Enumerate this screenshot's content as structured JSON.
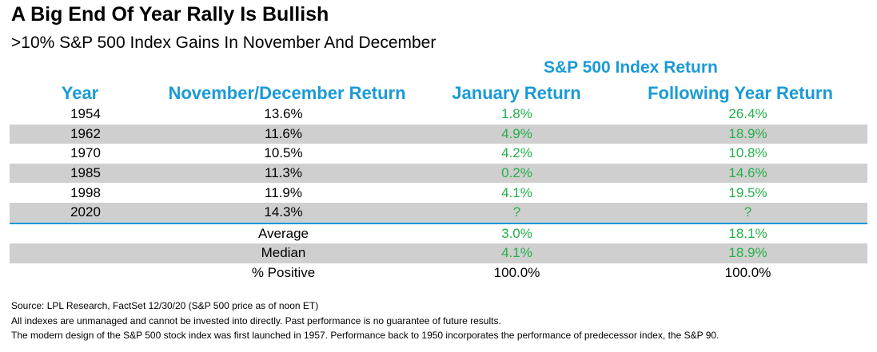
{
  "title": "A Big End Of Year Rally Is Bullish",
  "subtitle": ">10% S&P 500 Index Gains In November And December",
  "group_header": "S&P 500 Index Return",
  "columns": [
    "Year",
    "November/December Return",
    "January Return",
    "Following Year Return"
  ],
  "colors": {
    "header_blue": "#1a9ad6",
    "value_green": "#22b04b",
    "row_shade": "#d0cfcf"
  },
  "rows": [
    {
      "year": "1954",
      "nov_dec": "13.6%",
      "january": "1.8%",
      "following": "26.4%"
    },
    {
      "year": "1962",
      "nov_dec": "11.6%",
      "january": "4.9%",
      "following": "18.9%"
    },
    {
      "year": "1970",
      "nov_dec": "10.5%",
      "january": "4.2%",
      "following": "10.8%"
    },
    {
      "year": "1985",
      "nov_dec": "11.3%",
      "january": "0.2%",
      "following": "14.6%"
    },
    {
      "year": "1998",
      "nov_dec": "11.9%",
      "january": "4.1%",
      "following": "19.5%"
    },
    {
      "year": "2020",
      "nov_dec": "14.3%",
      "january": "?",
      "following": "?"
    }
  ],
  "summary": [
    {
      "label": "Average",
      "january": "3.0%",
      "following": "18.1%"
    },
    {
      "label": "Median",
      "january": "4.1%",
      "following": "18.9%"
    },
    {
      "label": "% Positive",
      "january": "100.0%",
      "following": "100.0%"
    }
  ],
  "footnotes": [
    "Source: LPL Research, FactSet 12/30/20 (S&P 500 price as of noon ET)",
    "All indexes are unmanaged and cannot be invested into directly. Past performance is no guarantee of future results.",
    "The modern design of the S&P 500 stock index was first launched in 1957. Performance back to 1950 incorporates the performance of predecessor index, the S&P 90."
  ],
  "chart_data": {
    "type": "table",
    "title": "A Big End Of Year Rally Is Bullish",
    "subtitle": ">10% S&P 500 Index Gains In November And December",
    "columns": [
      "Year",
      "November/December Return",
      "January Return",
      "Following Year Return"
    ],
    "rows": [
      [
        "1954",
        "13.6%",
        "1.8%",
        "26.4%"
      ],
      [
        "1962",
        "11.6%",
        "4.9%",
        "18.9%"
      ],
      [
        "1970",
        "10.5%",
        "4.2%",
        "10.8%"
      ],
      [
        "1985",
        "11.3%",
        "0.2%",
        "14.6%"
      ],
      [
        "1998",
        "11.9%",
        "4.1%",
        "19.5%"
      ],
      [
        "2020",
        "14.3%",
        "?",
        "?"
      ],
      [
        "",
        "Average",
        "3.0%",
        "18.1%"
      ],
      [
        "",
        "Median",
        "4.1%",
        "18.9%"
      ],
      [
        "",
        "% Positive",
        "100.0%",
        "100.0%"
      ]
    ]
  }
}
